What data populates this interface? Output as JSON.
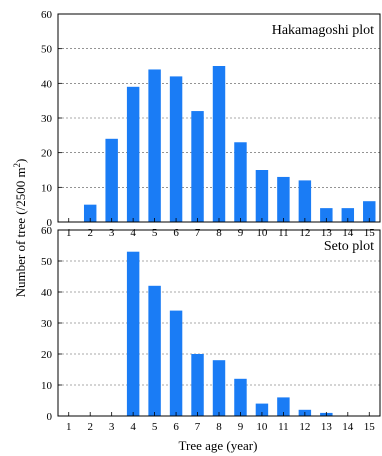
{
  "figure": {
    "ylabel_main": "Number of tree (/2500 m",
    "ylabel_sup": "2",
    "ylabel_tail": ")",
    "xlabel": "Tree age (year)"
  },
  "chart_data": [
    {
      "type": "bar",
      "title": "Hakamagoshi plot",
      "categories": [
        "1",
        "2",
        "3",
        "4",
        "5",
        "6",
        "7",
        "8",
        "9",
        "10",
        "11",
        "12",
        "13",
        "14",
        "15"
      ],
      "values": [
        0,
        5,
        24,
        39,
        44,
        42,
        32,
        45,
        23,
        15,
        13,
        12,
        4,
        4,
        6
      ],
      "ylim": [
        0,
        60
      ],
      "yticks": [
        "0",
        "10",
        "20",
        "30",
        "40",
        "50",
        "60"
      ],
      "grid": true,
      "bar_color": "#1a7cf5"
    },
    {
      "type": "bar",
      "title": "Seto plot",
      "categories": [
        "1",
        "2",
        "3",
        "4",
        "5",
        "6",
        "7",
        "8",
        "9",
        "10",
        "11",
        "12",
        "13",
        "14",
        "15"
      ],
      "values": [
        0,
        0,
        0,
        53,
        42,
        34,
        20,
        18,
        12,
        4,
        6,
        2,
        1,
        0,
        0
      ],
      "ylim": [
        0,
        60
      ],
      "yticks": [
        "0",
        "10",
        "20",
        "30",
        "40",
        "50",
        "60"
      ],
      "grid": true,
      "bar_color": "#1a7cf5"
    }
  ]
}
